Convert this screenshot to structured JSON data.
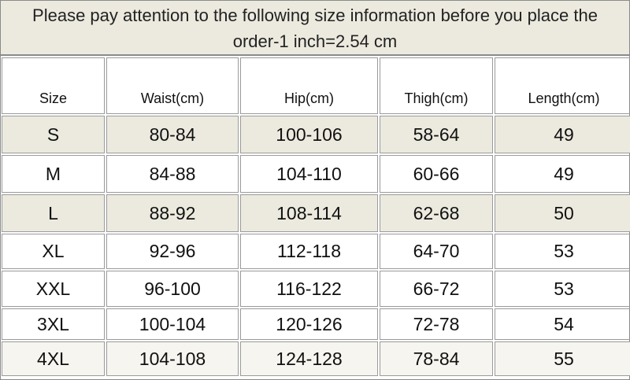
{
  "header": {
    "title": "Please pay attention to the following size information before you place the order-1 inch=2.54 cm"
  },
  "table": {
    "columns": [
      "Size",
      "Waist(cm)",
      "Hip(cm)",
      "Thigh(cm)",
      "Length(cm)"
    ],
    "rows": [
      [
        "S",
        "80-84",
        "100-106",
        "58-64",
        "49"
      ],
      [
        "M",
        "84-88",
        "104-110",
        "60-66",
        "49"
      ],
      [
        "L",
        "88-92",
        "108-114",
        "62-68",
        "50"
      ],
      [
        "XL",
        "92-96",
        "112-118",
        "64-70",
        "53"
      ],
      [
        "XXL",
        "96-100",
        "116-122",
        "66-72",
        "53"
      ],
      [
        "3XL",
        "100-104",
        "120-126",
        "72-78",
        "54"
      ],
      [
        "4XL",
        "104-108",
        "124-128",
        "78-84",
        "55"
      ]
    ]
  }
}
